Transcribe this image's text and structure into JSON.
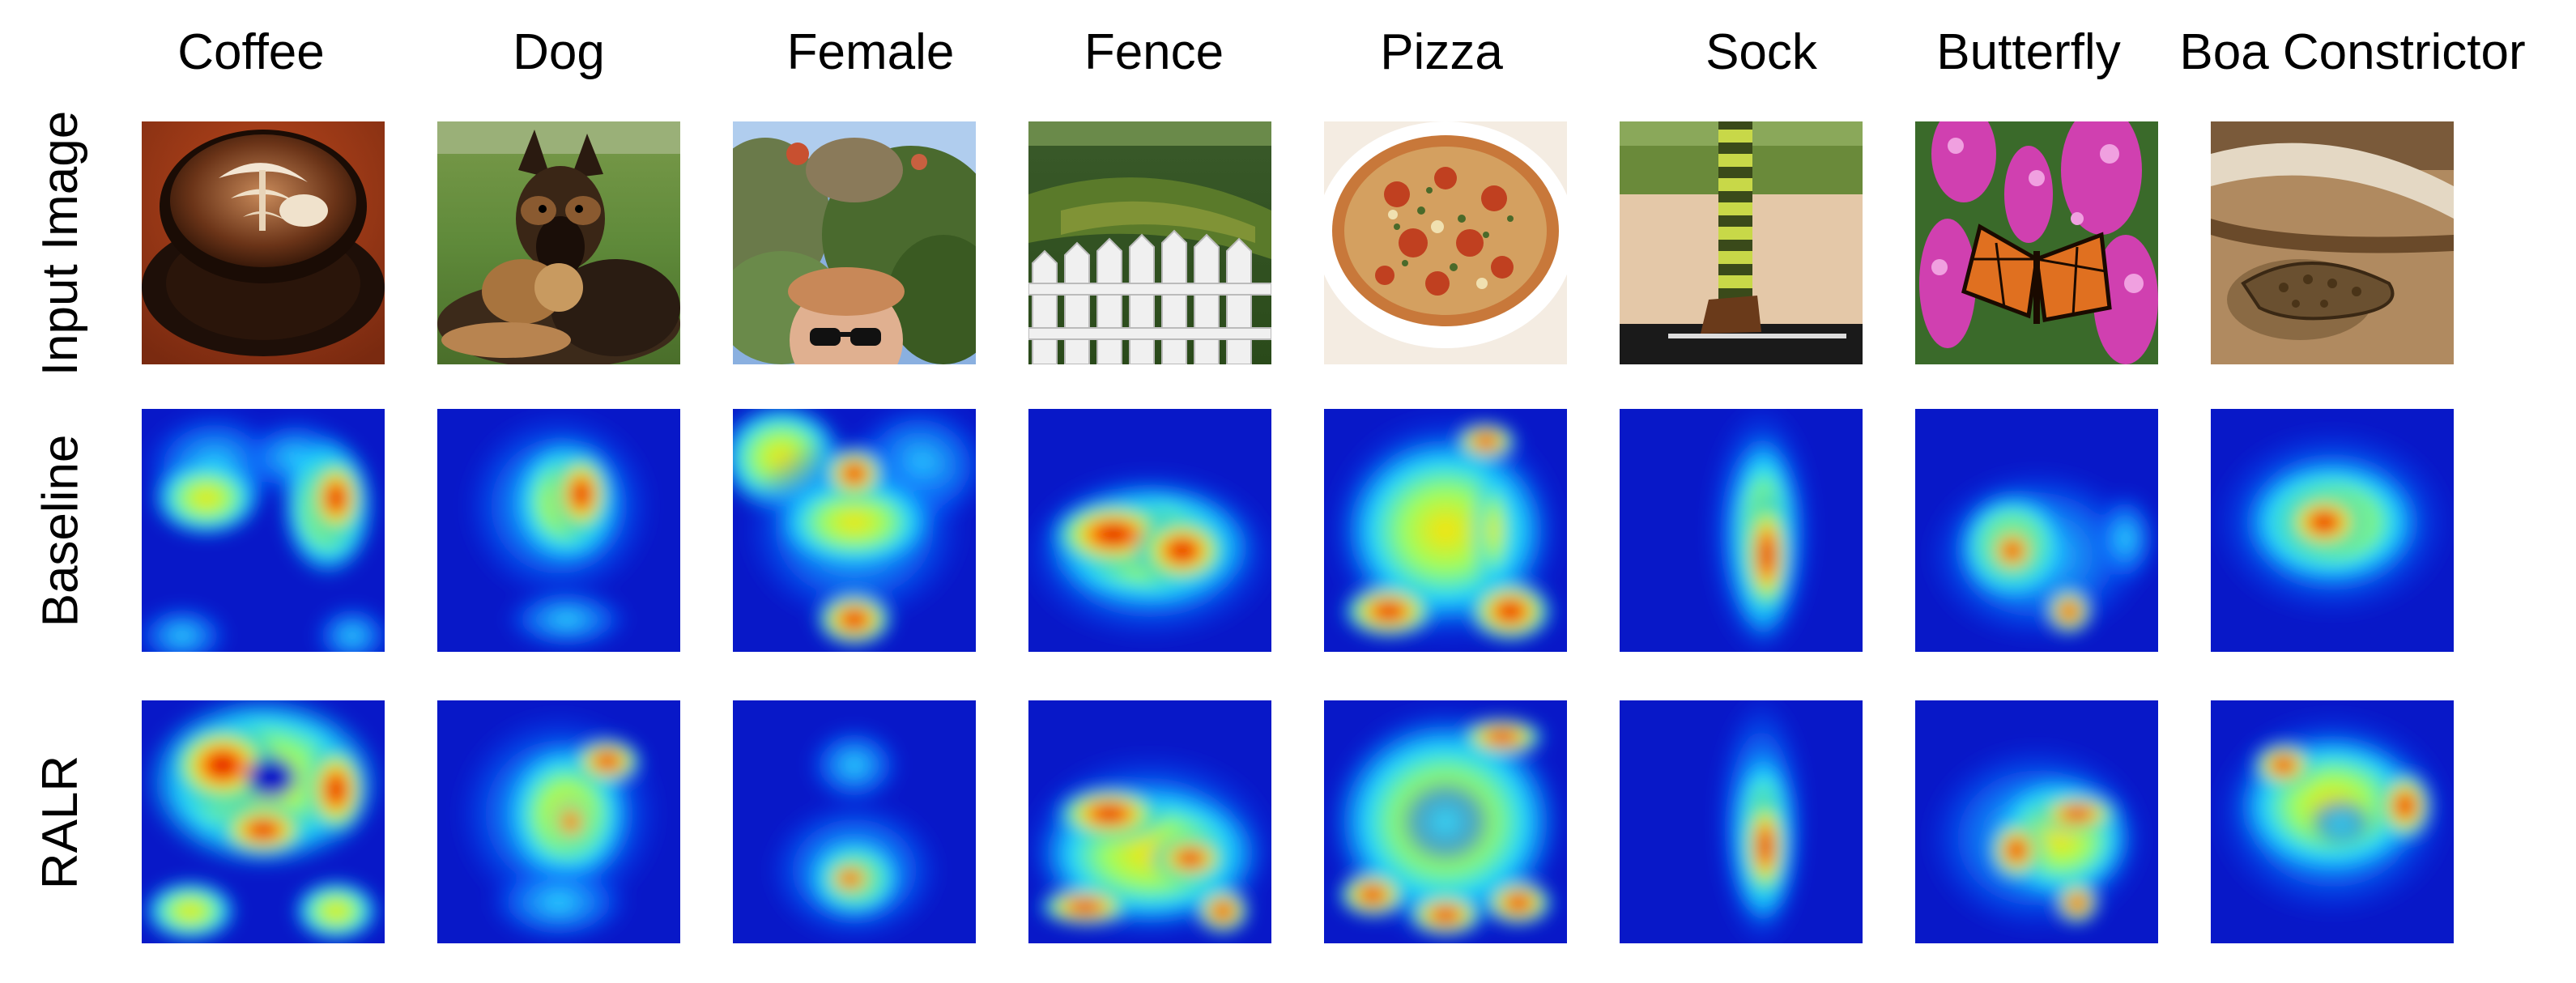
{
  "columns": [
    "Coffee",
    "Dog",
    "Female",
    "Fence",
    "Pizza",
    "Sock",
    "Butterfly",
    "Boa Constrictor"
  ],
  "rows": [
    "Input Image",
    "Baseline",
    "RALR"
  ],
  "colors": {
    "heat_low": "#0000c8",
    "heat_mid_low": "#00b4ff",
    "heat_mid": "#7dff7d",
    "heat_mid_high": "#ffff00",
    "heat_high": "#ff2a00",
    "heat_max": "#c80000"
  }
}
